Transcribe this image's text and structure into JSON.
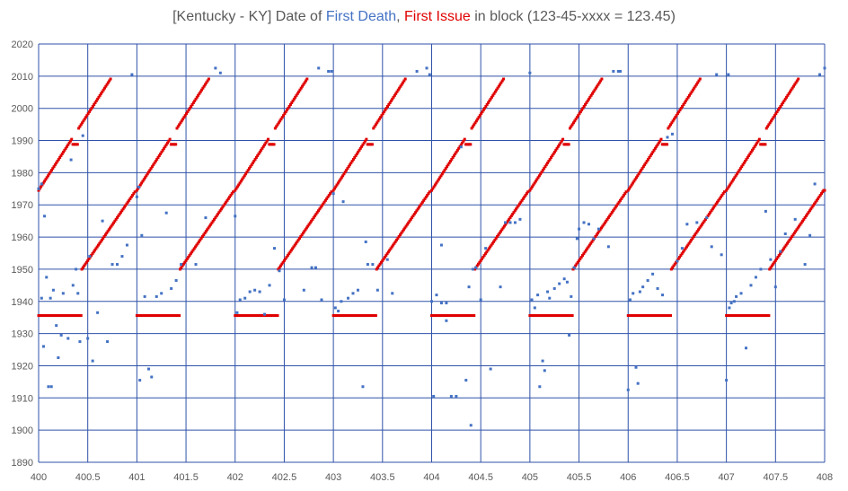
{
  "title": {
    "prefix": "[Kentucky - KY] Date of ",
    "death_label": "First Death",
    "sep": ", ",
    "issue_label": "First Issue",
    "suffix": " in block (123-45-xxxx = 123.45)"
  },
  "colors": {
    "first_death": "#4472c4",
    "first_issue": "#e00000",
    "grid": "#2f52a8",
    "text": "#595959"
  },
  "chart_data": {
    "type": "scatter",
    "xlim": [
      400,
      408
    ],
    "ylim": [
      1890,
      2020
    ],
    "x_ticks": [
      "400",
      "400.5",
      "401",
      "401.5",
      "402",
      "402.5",
      "403",
      "403.5",
      "404",
      "404.5",
      "405",
      "405.5",
      "406",
      "406.5",
      "407",
      "407.5",
      "408"
    ],
    "y_ticks": [
      "1890",
      "1900",
      "1910",
      "1920",
      "1930",
      "1940",
      "1950",
      "1960",
      "1970",
      "1980",
      "1990",
      "2000",
      "2010",
      "2020"
    ],
    "grid": true,
    "issue_pattern": [
      {
        "x_offset": [
          0.0,
          0.44
        ],
        "y": 1935.6,
        "note": "flat segment, even group numbers"
      },
      {
        "x_offset": [
          0.44,
          0.74
        ],
        "y": [
          1950,
          2010
        ],
        "note": "even group numbers rising"
      },
      {
        "x_offset": [
          0.0,
          0.99
        ],
        "y": [
          1974.5,
          2009.5
        ],
        "note": "odd group numbers rising"
      }
    ],
    "series": [
      {
        "name": "First Issue",
        "color": "#e00000",
        "points": [
          [
            400.0,
            1974.6
          ],
          [
            400.1,
            1978.4
          ],
          [
            400.2,
            1983.0
          ],
          [
            400.3,
            1987.2
          ],
          [
            400.4,
            1989.0
          ],
          [
            400.5,
            1997.4
          ],
          [
            400.6,
            2003.1
          ],
          [
            400.7,
            2008.8
          ],
          [
            400.05,
            1935.6
          ],
          [
            400.2,
            1935.6
          ],
          [
            400.4,
            1935.6
          ],
          [
            400.5,
            1954.0
          ],
          [
            400.6,
            1962.0
          ],
          [
            400.7,
            1966.0
          ],
          [
            400.8,
            1969.5
          ],
          [
            400.9,
            1972.6
          ],
          [
            401.0,
            1974.6
          ],
          [
            401.5,
            1997.4
          ],
          [
            401.7,
            2008.8
          ],
          [
            401.05,
            1935.6
          ],
          [
            401.4,
            1935.6
          ],
          [
            401.5,
            1954.0
          ],
          [
            401.7,
            1966.0
          ],
          [
            402.0,
            1974.6
          ],
          [
            402.5,
            1997.4
          ],
          [
            402.7,
            2008.8
          ],
          [
            402.05,
            1935.6
          ],
          [
            402.4,
            1935.6
          ],
          [
            402.5,
            1954.0
          ],
          [
            402.7,
            1966.0
          ],
          [
            403.0,
            1974.6
          ],
          [
            403.5,
            1997.4
          ],
          [
            403.7,
            2008.8
          ],
          [
            403.05,
            1935.6
          ],
          [
            403.4,
            1935.6
          ],
          [
            403.5,
            1954.0
          ],
          [
            403.7,
            1966.0
          ],
          [
            404.0,
            1974.6
          ],
          [
            404.5,
            1997.4
          ],
          [
            404.7,
            2008.8
          ],
          [
            404.05,
            1935.6
          ],
          [
            404.4,
            1935.6
          ],
          [
            404.5,
            1954.0
          ],
          [
            404.7,
            1966.0
          ],
          [
            405.0,
            1974.6
          ],
          [
            405.5,
            1997.4
          ],
          [
            405.7,
            2008.8
          ],
          [
            405.05,
            1935.6
          ],
          [
            405.4,
            1935.6
          ],
          [
            405.5,
            1954.0
          ],
          [
            405.7,
            1966.0
          ],
          [
            406.0,
            1974.6
          ],
          [
            406.5,
            1997.4
          ],
          [
            406.7,
            2008.8
          ],
          [
            406.05,
            1935.6
          ],
          [
            406.4,
            1935.6
          ],
          [
            406.5,
            1954.0
          ],
          [
            406.7,
            1966.0
          ],
          [
            407.0,
            1974.6
          ],
          [
            407.5,
            1997.4
          ],
          [
            407.7,
            2008.8
          ],
          [
            407.05,
            1935.6
          ],
          [
            407.4,
            1935.6
          ],
          [
            407.5,
            1954.0
          ],
          [
            407.7,
            1966.0
          ],
          [
            407.9,
            1972.6
          ],
          [
            408.0,
            1974.6
          ]
        ]
      },
      {
        "name": "First Death",
        "color": "#4472c4",
        "points": [
          [
            400.0,
            1975.0
          ],
          [
            400.03,
            1976.5
          ],
          [
            400.06,
            1966.5
          ],
          [
            400.08,
            1947.5
          ],
          [
            400.1,
            1913.5
          ],
          [
            400.13,
            1913.5
          ],
          [
            400.12,
            1941.0
          ],
          [
            400.15,
            1943.5
          ],
          [
            400.18,
            1932.5
          ],
          [
            400.2,
            1922.5
          ],
          [
            400.23,
            1929.5
          ],
          [
            400.25,
            1942.5
          ],
          [
            400.3,
            1928.5
          ],
          [
            400.33,
            1984.0
          ],
          [
            400.35,
            1945.0
          ],
          [
            400.38,
            1950.0
          ],
          [
            400.4,
            1942.5
          ],
          [
            400.42,
            1927.5
          ],
          [
            400.45,
            1991.5
          ],
          [
            400.5,
            1928.5
          ],
          [
            400.52,
            1954.0
          ],
          [
            400.55,
            1921.5
          ],
          [
            400.6,
            1936.5
          ],
          [
            400.65,
            1965.0
          ],
          [
            400.7,
            1927.5
          ],
          [
            400.75,
            1951.5
          ],
          [
            400.8,
            1951.5
          ],
          [
            400.85,
            1954.0
          ],
          [
            400.95,
            2010.5
          ],
          [
            400.9,
            1957.5
          ],
          [
            400.05,
            1926.0
          ],
          [
            400.03,
            1941.0
          ],
          [
            401.0,
            1972.5
          ],
          [
            401.02,
            1975.5
          ],
          [
            401.05,
            1960.5
          ],
          [
            401.03,
            1915.5
          ],
          [
            401.08,
            1941.5
          ],
          [
            401.12,
            1919.0
          ],
          [
            401.15,
            1916.5
          ],
          [
            401.2,
            1941.5
          ],
          [
            401.25,
            1942.5
          ],
          [
            401.3,
            1967.5
          ],
          [
            401.35,
            1944.0
          ],
          [
            401.4,
            1946.5
          ],
          [
            401.45,
            1951.5
          ],
          [
            401.6,
            1951.5
          ],
          [
            401.7,
            1966.0
          ],
          [
            401.8,
            2012.5
          ],
          [
            401.85,
            2011.0
          ],
          [
            402.0,
            1966.5
          ],
          [
            402.02,
            1936.5
          ],
          [
            402.05,
            1940.5
          ],
          [
            402.1,
            1941.0
          ],
          [
            402.15,
            1943.0
          ],
          [
            402.2,
            1943.5
          ],
          [
            402.25,
            1943.0
          ],
          [
            402.3,
            1936.0
          ],
          [
            402.35,
            1945.0
          ],
          [
            402.4,
            1956.5
          ],
          [
            402.45,
            1949.5
          ],
          [
            402.5,
            1940.5
          ],
          [
            402.7,
            1943.5
          ],
          [
            402.78,
            1950.5
          ],
          [
            402.82,
            1950.5
          ],
          [
            402.85,
            2012.5
          ],
          [
            402.88,
            1940.5
          ],
          [
            402.95,
            2011.5
          ],
          [
            402.98,
            2011.5
          ],
          [
            403.0,
            1973.5
          ],
          [
            403.02,
            1938.0
          ],
          [
            403.05,
            1937.0
          ],
          [
            403.08,
            1940.0
          ],
          [
            403.1,
            1971.0
          ],
          [
            403.15,
            1941.0
          ],
          [
            403.2,
            1942.5
          ],
          [
            403.25,
            1943.5
          ],
          [
            403.3,
            1913.5
          ],
          [
            403.33,
            1958.5
          ],
          [
            403.35,
            1951.5
          ],
          [
            403.4,
            1951.5
          ],
          [
            403.45,
            1943.5
          ],
          [
            403.55,
            1953.0
          ],
          [
            403.6,
            1942.5
          ],
          [
            403.85,
            2011.5
          ],
          [
            403.95,
            2012.5
          ],
          [
            403.98,
            2010.5
          ],
          [
            404.0,
            1940.0
          ],
          [
            404.02,
            1910.5
          ],
          [
            404.05,
            1942.0
          ],
          [
            404.1,
            1939.5
          ],
          [
            404.15,
            1939.5
          ],
          [
            404.2,
            1910.5
          ],
          [
            404.25,
            1910.5
          ],
          [
            404.3,
            1988.0
          ],
          [
            404.35,
            1915.5
          ],
          [
            404.38,
            1944.5
          ],
          [
            404.4,
            1901.5
          ],
          [
            404.42,
            1950.0
          ],
          [
            404.45,
            1950.5
          ],
          [
            404.5,
            1940.5
          ],
          [
            404.55,
            1956.5
          ],
          [
            404.6,
            1919.0
          ],
          [
            404.7,
            1944.5
          ],
          [
            404.75,
            1964.5
          ],
          [
            404.8,
            1964.5
          ],
          [
            404.85,
            1964.5
          ],
          [
            404.9,
            1965.5
          ],
          [
            404.1,
            1957.5
          ],
          [
            404.15,
            1934.0
          ],
          [
            405.0,
            2011.0
          ],
          [
            405.02,
            1940.5
          ],
          [
            405.05,
            1938.0
          ],
          [
            405.08,
            1942.0
          ],
          [
            405.1,
            1913.5
          ],
          [
            405.13,
            1921.5
          ],
          [
            405.15,
            1918.5
          ],
          [
            405.18,
            1943.0
          ],
          [
            405.2,
            1941.0
          ],
          [
            405.25,
            1944.0
          ],
          [
            405.3,
            1945.5
          ],
          [
            405.35,
            1947.0
          ],
          [
            405.38,
            1946.0
          ],
          [
            405.4,
            1929.5
          ],
          [
            405.42,
            1941.5
          ],
          [
            405.45,
            1950.5
          ],
          [
            405.48,
            1959.5
          ],
          [
            405.5,
            1962.5
          ],
          [
            405.55,
            1964.5
          ],
          [
            405.6,
            1964.0
          ],
          [
            405.65,
            1959.5
          ],
          [
            405.7,
            1962.5
          ],
          [
            405.8,
            1957.0
          ],
          [
            405.85,
            2011.5
          ],
          [
            405.9,
            2011.5
          ],
          [
            405.92,
            2011.5
          ],
          [
            406.0,
            1912.5
          ],
          [
            406.02,
            1940.5
          ],
          [
            406.05,
            1942.5
          ],
          [
            406.08,
            1919.5
          ],
          [
            406.1,
            1914.5
          ],
          [
            406.12,
            1943.0
          ],
          [
            406.15,
            1944.5
          ],
          [
            406.2,
            1946.5
          ],
          [
            406.25,
            1948.5
          ],
          [
            406.3,
            1944.0
          ],
          [
            406.35,
            1942.0
          ],
          [
            406.4,
            1991.0
          ],
          [
            406.45,
            1992.0
          ],
          [
            406.5,
            1952.5
          ],
          [
            406.55,
            1956.5
          ],
          [
            406.6,
            1964.0
          ],
          [
            406.7,
            1964.5
          ],
          [
            406.8,
            1966.0
          ],
          [
            406.85,
            1957.0
          ],
          [
            406.9,
            2010.5
          ],
          [
            406.95,
            1954.5
          ],
          [
            407.0,
            1915.5
          ],
          [
            407.03,
            1938.0
          ],
          [
            407.05,
            1939.5
          ],
          [
            407.08,
            1940.0
          ],
          [
            407.1,
            1941.5
          ],
          [
            407.15,
            1942.5
          ],
          [
            407.2,
            1925.5
          ],
          [
            407.25,
            1945.0
          ],
          [
            407.3,
            1947.5
          ],
          [
            407.35,
            1950.0
          ],
          [
            407.4,
            1968.0
          ],
          [
            407.45,
            1953.0
          ],
          [
            407.5,
            1944.5
          ],
          [
            407.55,
            1955.5
          ],
          [
            407.6,
            1961.0
          ],
          [
            407.7,
            1965.5
          ],
          [
            407.8,
            1951.5
          ],
          [
            407.85,
            1960.5
          ],
          [
            407.9,
            1976.5
          ],
          [
            407.95,
            2010.5
          ],
          [
            408.0,
            2012.5
          ],
          [
            407.02,
            2010.5
          ]
        ]
      }
    ]
  }
}
